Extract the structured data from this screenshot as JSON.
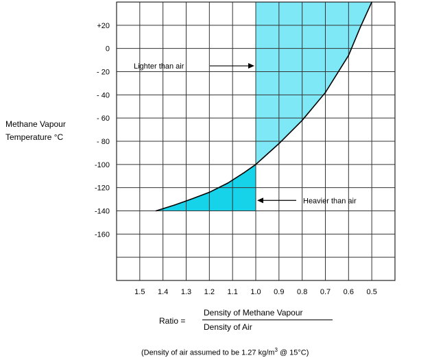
{
  "chart_data": {
    "type": "area",
    "xlabel": "Ratio =",
    "ratio_numerator": "Density of Methane Vapour",
    "ratio_denominator": "Density of Air",
    "ylabel_lines": [
      "Methane Vapour",
      "Temperature °C"
    ],
    "x_tick_labels": [
      "1.5",
      "1.4",
      "1.3",
      "1.2",
      "1.1",
      "1.0",
      "0.9",
      "0.8",
      "0.7",
      "0.6",
      "0.5"
    ],
    "x_ticks": [
      1.5,
      1.4,
      1.3,
      1.2,
      1.1,
      1.0,
      0.9,
      0.8,
      0.7,
      0.6,
      0.5
    ],
    "xlim": [
      1.6,
      0.4
    ],
    "x_reversed": true,
    "y_tick_labels": [
      "+20",
      "0",
      "- 20",
      "- 40",
      "- 60",
      "- 80",
      "-100",
      "-120",
      "-140",
      "-160"
    ],
    "y_ticks": [
      20,
      0,
      -20,
      -40,
      -60,
      -80,
      -100,
      -120,
      -140,
      -160
    ],
    "ylim": [
      -200,
      40
    ],
    "grid": true,
    "series": [
      {
        "x": [
          1.43,
          1.35,
          1.28,
          1.2,
          1.12,
          1.05,
          1.0,
          0.9,
          0.8,
          0.7,
          0.6,
          0.55,
          0.5
        ],
        "y": [
          -140,
          -135,
          -130,
          -124,
          -116,
          -107,
          -100,
          -82,
          -62,
          -38,
          -6,
          18,
          40
        ]
      }
    ],
    "regions": [
      {
        "label": "Lighter than air",
        "color": "#7ee8f6"
      },
      {
        "label": "Heavier than air",
        "color": "#16d3ea"
      }
    ],
    "annotations": [
      {
        "text": "Lighter than air",
        "arrow_to_x": 1.0,
        "y": -15
      },
      {
        "text": "Heavier than air",
        "arrow_to_x": 1.0,
        "y": -131
      }
    ],
    "footnote": {
      "before": "(Density of air assumed to be 1.27 kg/m",
      "sup": "3",
      "after": " @ 15°C)"
    }
  }
}
